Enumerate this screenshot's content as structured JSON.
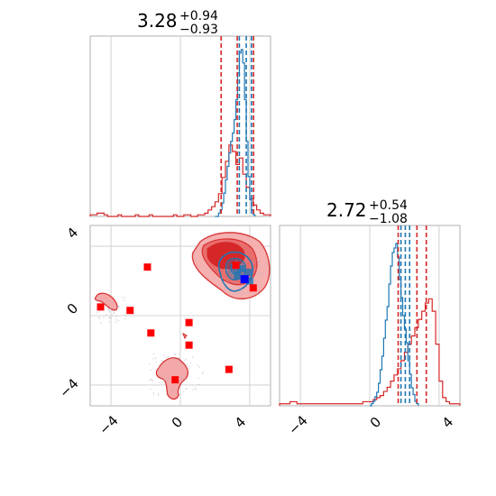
{
  "chart_data": {
    "type": "corner",
    "colors": {
      "series_blue": "#1f77b4",
      "series_red": "#d62728",
      "truth_marker": "#0000ff",
      "red_marker": "#ff0000",
      "grid": "#c8c8c8"
    },
    "panels": {
      "top_hist": {
        "title": {
          "value": "3.28",
          "plus": "+0.94",
          "minus": "−0.93"
        },
        "xlim": [
          -5.2,
          5.2
        ],
        "red_quantiles": [
          2.35,
          3.28,
          4.22
        ],
        "blue_quantiles": [
          3.4,
          3.8,
          4.1
        ],
        "blue_hist": {
          "edges_start": 2.0,
          "bin_width": 0.1,
          "counts": [
            0,
            0,
            0.02,
            0.04,
            0.08,
            0.14,
            0.22,
            0.3,
            0.38,
            0.45,
            0.5,
            0.58,
            0.7,
            0.86,
            0.98,
            1.0,
            0.92,
            0.7,
            0.45,
            0.24,
            0.1,
            0.04,
            0.01
          ]
        },
        "red_hist": {
          "edges_start": -5.2,
          "bin_width": 0.2,
          "counts": [
            0.01,
            0.01,
            0.02,
            0.02,
            0.01,
            0,
            0,
            0,
            0.01,
            0,
            0,
            0,
            0,
            0.01,
            0,
            0,
            0,
            0.01,
            0,
            0,
            0,
            0,
            0,
            0,
            0.01,
            0,
            0,
            0.01,
            0.01,
            0,
            0,
            0.01,
            0.01,
            0.02,
            0.04,
            0.06,
            0.09,
            0.14,
            0.24,
            0.34,
            0.44,
            0.4,
            0.32,
            0.36,
            0.26,
            0.18,
            0.11,
            0.07,
            0.04,
            0.02,
            0.01,
            0.01
          ]
        }
      },
      "scatter": {
        "xlim": [
          -5.2,
          5.2
        ],
        "ylim": [
          -5.2,
          5.2
        ],
        "x_ticks": [
          "−4",
          "0",
          "4"
        ],
        "y_ticks": [
          "−4",
          "0",
          "4"
        ],
        "red_markers": [
          [
            -4.6,
            0.5
          ],
          [
            -2.9,
            0.3
          ],
          [
            -1.9,
            2.8
          ],
          [
            -1.7,
            -1.0
          ],
          [
            0.5,
            -0.4
          ],
          [
            0.5,
            -1.7
          ],
          [
            -0.3,
            -3.7
          ],
          [
            2.8,
            -3.1
          ],
          [
            3.2,
            2.9
          ],
          [
            4.2,
            1.6
          ]
        ],
        "truth_marker": [
          3.7,
          2.1
        ],
        "blue_markers": [
          [
            3.5,
            2.7
          ],
          [
            3.9,
            2.5
          ],
          [
            4.0,
            2.0
          ],
          [
            3.3,
            2.3
          ]
        ]
      },
      "right_hist": {
        "title": {
          "value": "2.72",
          "plus": "+0.54",
          "minus": "−1.08"
        },
        "xlim": [
          -5.2,
          5.2
        ],
        "x_ticks": [
          "−4",
          "0",
          "4"
        ],
        "red_quantiles": [
          1.64,
          2.72,
          3.26
        ],
        "blue_quantiles": [
          1.8,
          2.05,
          2.3
        ],
        "blue_hist": {
          "edges_start": 0.0,
          "bin_width": 0.1,
          "counts": [
            0,
            0.01,
            0.02,
            0.04,
            0.06,
            0.1,
            0.16,
            0.22,
            0.3,
            0.38,
            0.44,
            0.54,
            0.62,
            0.68,
            0.7,
            0.72,
            0.66,
            0.56,
            0.48,
            0.4,
            0.34,
            0.28,
            0.2,
            0.14,
            0.08,
            0.05,
            0.02,
            0.01
          ]
        },
        "red_hist": {
          "edges_start": -5.2,
          "bin_width": 0.2,
          "counts": [
            0.01,
            0.01,
            0.01,
            0.02,
            0.02,
            0.01,
            0.01,
            0.01,
            0.01,
            0.01,
            0.01,
            0.01,
            0.01,
            0.01,
            0.01,
            0.01,
            0.01,
            0.01,
            0.01,
            0.01,
            0.01,
            0.01,
            0.01,
            0.01,
            0.02,
            0.02,
            0.02,
            0.03,
            0.04,
            0.05,
            0.07,
            0.09,
            0.12,
            0.15,
            0.18,
            0.22,
            0.26,
            0.3,
            0.34,
            0.38,
            0.42,
            0.46,
            0.5,
            0.52,
            0.46,
            0.3,
            0.12,
            0.04,
            0.02,
            0.01,
            0.01,
            0.01
          ]
        }
      }
    }
  }
}
